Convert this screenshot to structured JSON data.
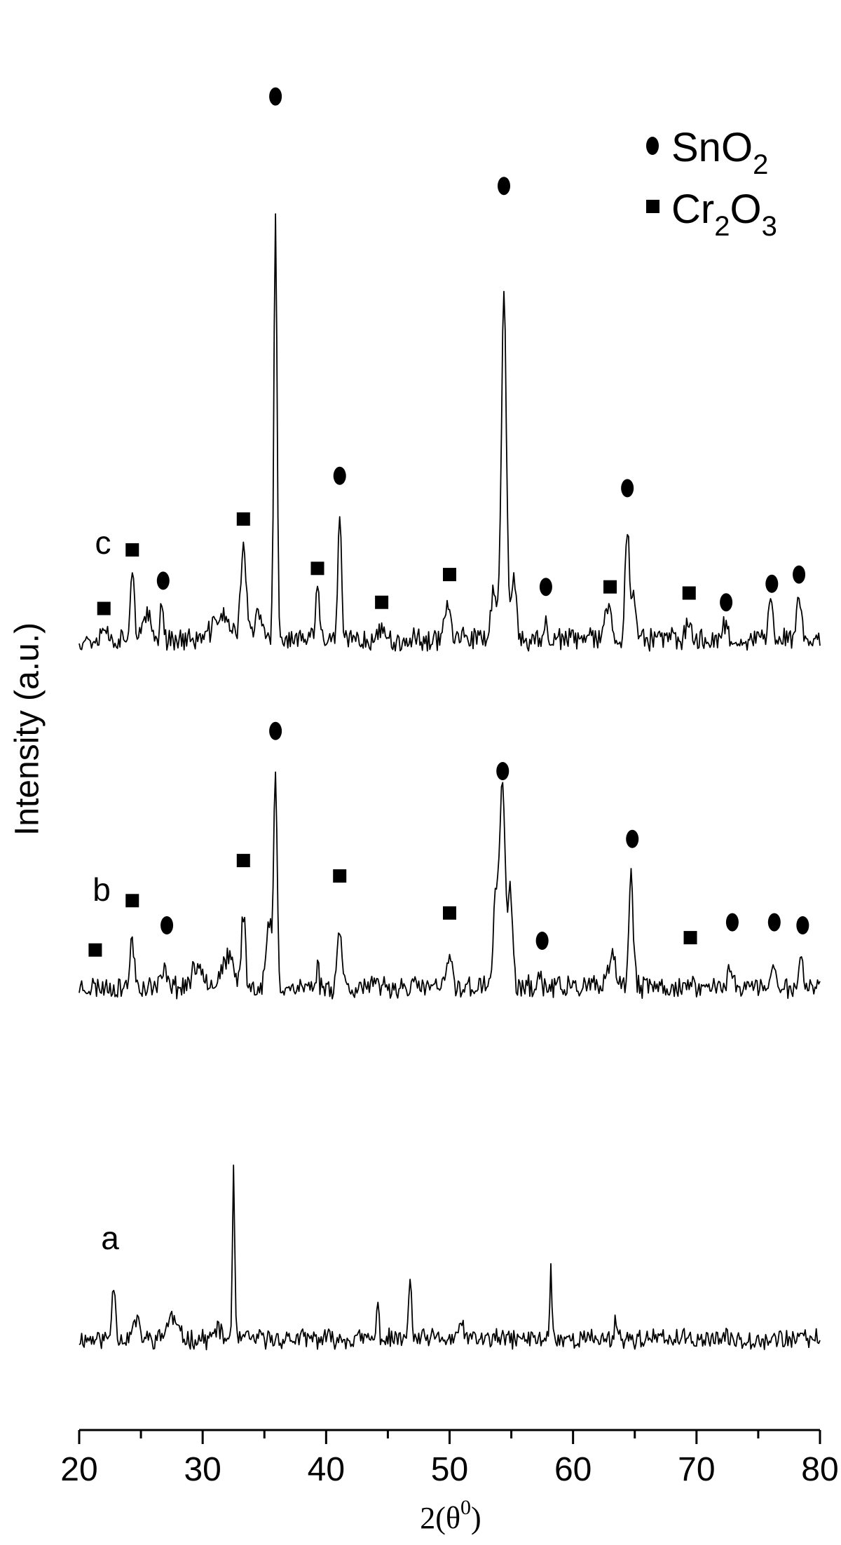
{
  "chart_data": {
    "type": "line",
    "title": "",
    "xlabel": "2(θ0)",
    "xlabel_parts": {
      "prefix": "2(θ",
      "sup": "0",
      "suffix": ")"
    },
    "ylabel": "Intensity (a.u.)",
    "xlim": [
      20,
      80
    ],
    "x_ticks": [
      20,
      30,
      40,
      50,
      60,
      70,
      80
    ],
    "grid": false,
    "legend": {
      "placement": "top-right",
      "entries": [
        {
          "marker": "circle",
          "base": "SnO",
          "sub": "2",
          "tail": "",
          "sub2": ""
        },
        {
          "marker": "square",
          "base": "Cr",
          "sub": "2",
          "tail": "O",
          "sub2": "3"
        }
      ]
    },
    "series": [
      {
        "name": "a",
        "baseline": 0,
        "noise": 0.14,
        "seed": 11,
        "peaks": [
          {
            "x": 22.8,
            "h": 0.9,
            "w": 0.15
          },
          {
            "x": 24.6,
            "h": 0.3,
            "w": 0.25
          },
          {
            "x": 27.5,
            "h": 0.35,
            "w": 0.4
          },
          {
            "x": 31.2,
            "h": 0.2,
            "w": 0.2
          },
          {
            "x": 32.5,
            "h": 2.75,
            "w": 0.09
          },
          {
            "x": 44.2,
            "h": 0.55,
            "w": 0.1
          },
          {
            "x": 46.8,
            "h": 1.1,
            "w": 0.1
          },
          {
            "x": 51.0,
            "h": 0.3,
            "w": 0.15
          },
          {
            "x": 58.2,
            "h": 1.3,
            "w": 0.08
          },
          {
            "x": 63.5,
            "h": 0.3,
            "w": 0.15
          }
        ],
        "markers": []
      },
      {
        "name": "b",
        "baseline": 0,
        "noise": 0.16,
        "seed": 23,
        "peaks": [
          {
            "x": 24.3,
            "h": 0.75,
            "w": 0.18
          },
          {
            "x": 27.0,
            "h": 0.25,
            "w": 0.3
          },
          {
            "x": 29.7,
            "h": 0.35,
            "w": 0.5
          },
          {
            "x": 32.0,
            "h": 0.45,
            "w": 0.5
          },
          {
            "x": 33.3,
            "h": 1.2,
            "w": 0.16
          },
          {
            "x": 35.4,
            "h": 1.0,
            "w": 0.25
          },
          {
            "x": 35.9,
            "h": 3.4,
            "w": 0.13
          },
          {
            "x": 39.3,
            "h": 0.4,
            "w": 0.1
          },
          {
            "x": 41.1,
            "h": 1.0,
            "w": 0.18
          },
          {
            "x": 50.0,
            "h": 0.55,
            "w": 0.18
          },
          {
            "x": 53.8,
            "h": 1.5,
            "w": 0.25
          },
          {
            "x": 54.3,
            "h": 3.2,
            "w": 0.2
          },
          {
            "x": 54.9,
            "h": 1.6,
            "w": 0.18
          },
          {
            "x": 57.3,
            "h": 0.2,
            "w": 0.12
          },
          {
            "x": 63.2,
            "h": 0.45,
            "w": 0.3
          },
          {
            "x": 64.7,
            "h": 1.75,
            "w": 0.18
          },
          {
            "x": 72.8,
            "h": 0.35,
            "w": 0.2
          },
          {
            "x": 76.3,
            "h": 0.3,
            "w": 0.2
          },
          {
            "x": 78.5,
            "h": 0.4,
            "w": 0.2
          }
        ],
        "markers": [
          {
            "x": 21.3,
            "y": 0.6,
            "type": "square"
          },
          {
            "x": 24.3,
            "y": 1.4,
            "type": "square"
          },
          {
            "x": 27.1,
            "y": 1.0,
            "type": "circle"
          },
          {
            "x": 33.3,
            "y": 2.05,
            "type": "square"
          },
          {
            "x": 35.9,
            "y": 4.15,
            "type": "circle"
          },
          {
            "x": 41.1,
            "y": 1.8,
            "type": "square"
          },
          {
            "x": 50.0,
            "y": 1.2,
            "type": "square"
          },
          {
            "x": 54.3,
            "y": 3.5,
            "type": "circle"
          },
          {
            "x": 57.5,
            "y": 0.75,
            "type": "circle"
          },
          {
            "x": 64.8,
            "y": 2.4,
            "type": "circle"
          },
          {
            "x": 69.5,
            "y": 0.8,
            "type": "square"
          },
          {
            "x": 72.9,
            "y": 1.05,
            "type": "circle"
          },
          {
            "x": 76.3,
            "y": 1.05,
            "type": "circle"
          },
          {
            "x": 78.6,
            "y": 1.0,
            "type": "circle"
          }
        ]
      },
      {
        "name": "c",
        "baseline": 0,
        "noise": 0.16,
        "seed": 37,
        "peaks": [
          {
            "x": 22.0,
            "h": 0.25,
            "w": 0.2
          },
          {
            "x": 24.3,
            "h": 1.1,
            "w": 0.18
          },
          {
            "x": 25.5,
            "h": 0.35,
            "w": 0.3
          },
          {
            "x": 26.7,
            "h": 0.55,
            "w": 0.15
          },
          {
            "x": 31.5,
            "h": 0.4,
            "w": 0.6
          },
          {
            "x": 33.3,
            "h": 1.55,
            "w": 0.22
          },
          {
            "x": 34.5,
            "h": 0.4,
            "w": 0.3
          },
          {
            "x": 35.9,
            "h": 6.75,
            "w": 0.13
          },
          {
            "x": 39.3,
            "h": 0.95,
            "w": 0.14
          },
          {
            "x": 41.1,
            "h": 1.95,
            "w": 0.14
          },
          {
            "x": 44.5,
            "h": 0.25,
            "w": 0.15
          },
          {
            "x": 49.8,
            "h": 0.6,
            "w": 0.25
          },
          {
            "x": 53.6,
            "h": 0.8,
            "w": 0.25
          },
          {
            "x": 54.4,
            "h": 5.55,
            "w": 0.2
          },
          {
            "x": 55.2,
            "h": 0.9,
            "w": 0.2
          },
          {
            "x": 57.8,
            "h": 0.35,
            "w": 0.1
          },
          {
            "x": 62.8,
            "h": 0.5,
            "w": 0.3
          },
          {
            "x": 64.4,
            "h": 1.75,
            "w": 0.18
          },
          {
            "x": 64.9,
            "h": 0.8,
            "w": 0.15
          },
          {
            "x": 69.3,
            "h": 0.25,
            "w": 0.2
          },
          {
            "x": 72.3,
            "h": 0.25,
            "w": 0.2
          },
          {
            "x": 76.0,
            "h": 0.55,
            "w": 0.2
          },
          {
            "x": 78.3,
            "h": 0.65,
            "w": 0.2
          }
        ],
        "markers": [
          {
            "x": 22.0,
            "y": 0.5,
            "type": "square"
          },
          {
            "x": 24.3,
            "y": 1.45,
            "type": "square"
          },
          {
            "x": 26.8,
            "y": 0.95,
            "type": "circle"
          },
          {
            "x": 33.3,
            "y": 1.95,
            "type": "square"
          },
          {
            "x": 35.9,
            "y": 8.8,
            "type": "circle"
          },
          {
            "x": 39.3,
            "y": 1.15,
            "type": "square"
          },
          {
            "x": 41.1,
            "y": 2.65,
            "type": "circle"
          },
          {
            "x": 44.5,
            "y": 0.6,
            "type": "square"
          },
          {
            "x": 50.0,
            "y": 1.05,
            "type": "square"
          },
          {
            "x": 54.4,
            "y": 7.35,
            "type": "circle"
          },
          {
            "x": 57.8,
            "y": 0.85,
            "type": "circle"
          },
          {
            "x": 63.0,
            "y": 0.85,
            "type": "square"
          },
          {
            "x": 64.4,
            "y": 2.45,
            "type": "circle"
          },
          {
            "x": 69.4,
            "y": 0.75,
            "type": "square"
          },
          {
            "x": 72.4,
            "y": 0.6,
            "type": "circle"
          },
          {
            "x": 76.1,
            "y": 0.9,
            "type": "circle"
          },
          {
            "x": 78.3,
            "y": 1.05,
            "type": "circle"
          }
        ]
      }
    ]
  }
}
